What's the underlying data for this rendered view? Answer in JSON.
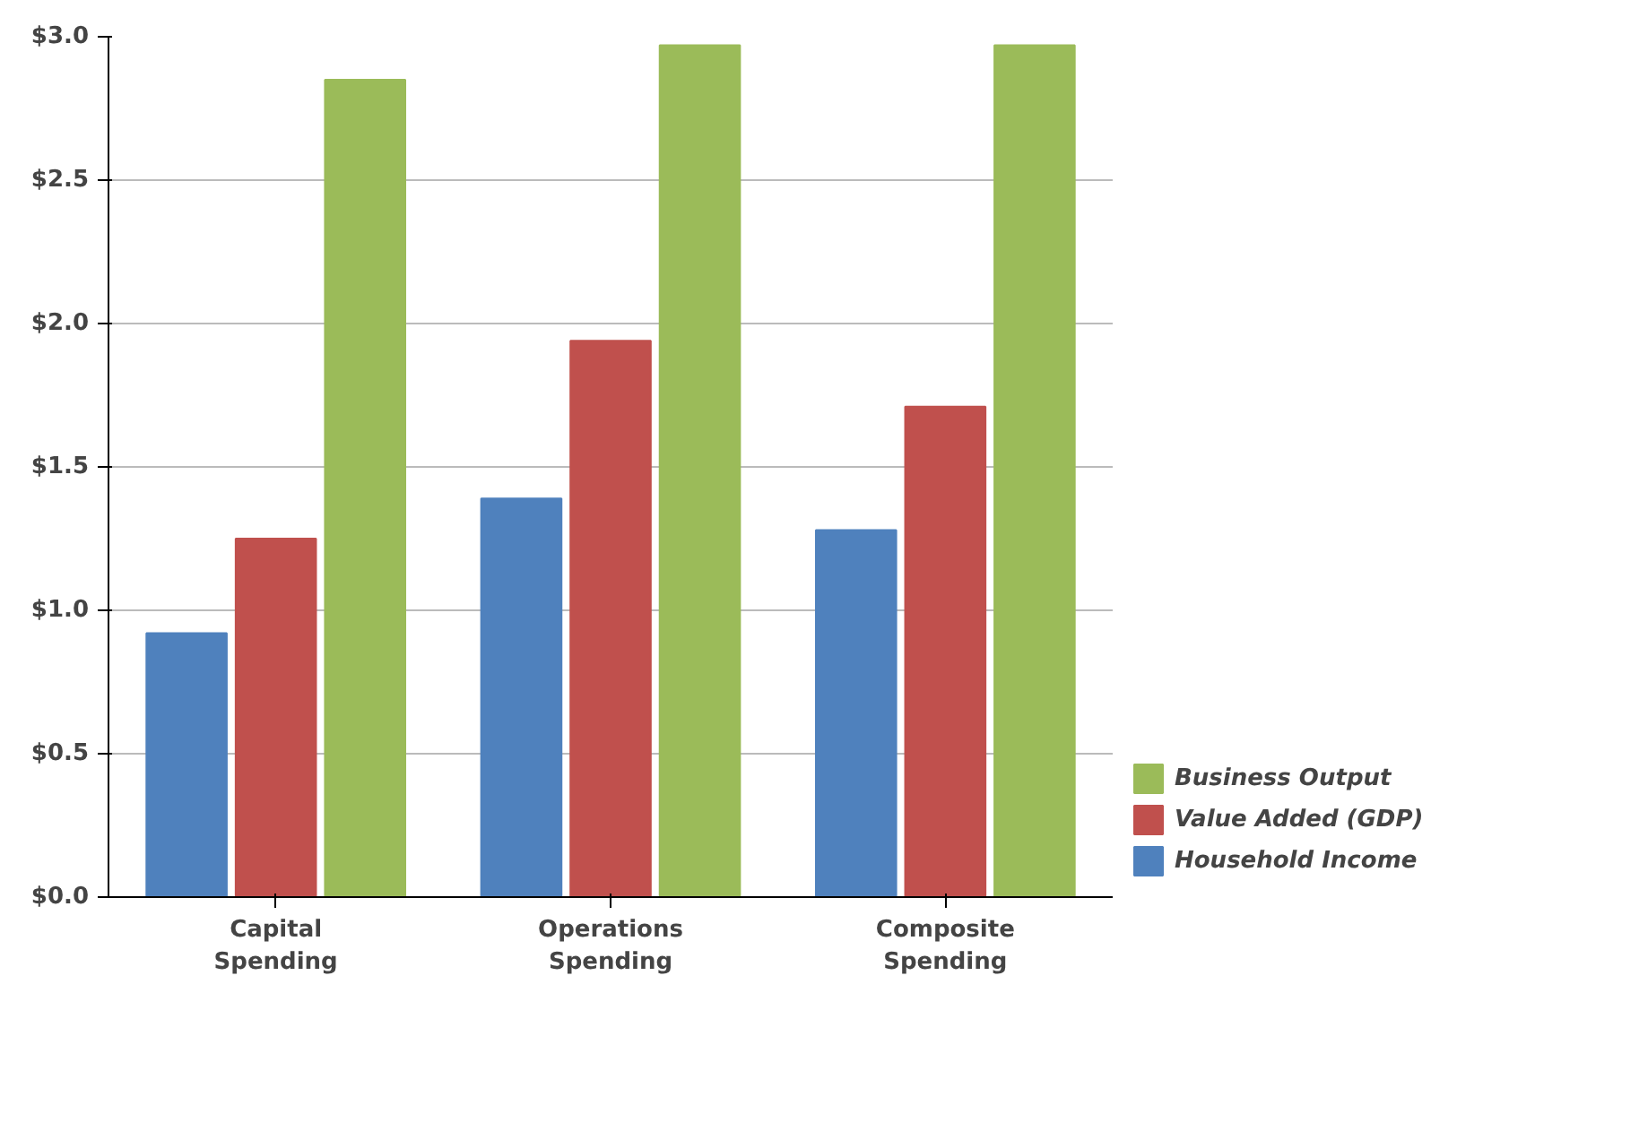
{
  "chart_data": {
    "type": "bar",
    "categories": [
      "Capital Spending",
      "Operations Spending",
      "Composite Spending"
    ],
    "series": [
      {
        "name": "Household Income",
        "color": "#4f81bd",
        "values": [
          0.92,
          1.39,
          1.28
        ]
      },
      {
        "name": "Value Added (GDP)",
        "color": "#c0504d",
        "values": [
          1.25,
          1.94,
          1.71
        ]
      },
      {
        "name": "Business Output",
        "color": "#9bbb59",
        "values": [
          2.85,
          2.97,
          2.97
        ]
      }
    ],
    "ylim": [
      0,
      3.0
    ],
    "yticks": [
      {
        "value": 0,
        "label": "$0.0"
      },
      {
        "value": 0.5,
        "label": "$0.5"
      },
      {
        "value": 1.0,
        "label": "$1.0"
      },
      {
        "value": 1.5,
        "label": "$1.5"
      },
      {
        "value": 2.0,
        "label": "$2.0"
      },
      {
        "value": 2.5,
        "label": "$2.5"
      },
      {
        "value": 3.0,
        "label": "$3.0"
      }
    ],
    "grid": "y",
    "legend": "bottom right"
  }
}
